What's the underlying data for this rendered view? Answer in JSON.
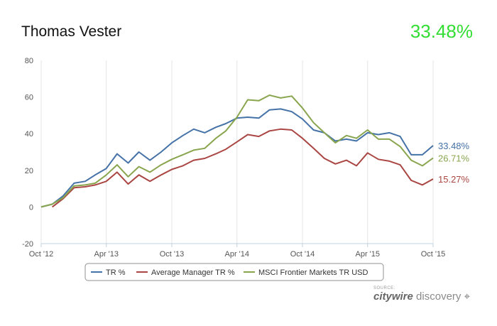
{
  "header": {
    "title": "Thomas Vester",
    "headline_value": "33.48%",
    "headline_color": "#33dd33"
  },
  "source": {
    "small": "SOURCE:",
    "brand_bold": "citywire",
    "brand_light": "discovery"
  },
  "chart_data": {
    "type": "line",
    "title": "",
    "xlabel": "",
    "ylabel": "",
    "ylim": [
      -20,
      80
    ],
    "yticks": [
      -20,
      0,
      20,
      40,
      60,
      80
    ],
    "xlim": [
      "2012-10-01",
      "2015-10-01"
    ],
    "xticks": [
      "2012-10-01",
      "2013-04-01",
      "2013-10-01",
      "2014-04-01",
      "2014-10-01",
      "2015-04-01",
      "2015-10-01"
    ],
    "xtick_labels": [
      "Oct '12",
      "Apr '13",
      "Oct '13",
      "Apr '14",
      "Oct '14",
      "Apr '15",
      "Oct '15"
    ],
    "grid": "vertical",
    "legend_position": "bottom",
    "series": [
      {
        "name": "TR %",
        "color": "#4572a7",
        "end_label": "33.48%",
        "points": [
          [
            "2012-10-01",
            0
          ],
          [
            "2012-11-01",
            1.5
          ],
          [
            "2012-12-01",
            6
          ],
          [
            "2013-01-01",
            13
          ],
          [
            "2013-02-01",
            14
          ],
          [
            "2013-03-01",
            17.5
          ],
          [
            "2013-04-01",
            21
          ],
          [
            "2013-05-01",
            29
          ],
          [
            "2013-06-01",
            24
          ],
          [
            "2013-07-01",
            30
          ],
          [
            "2013-08-01",
            25.5
          ],
          [
            "2013-09-01",
            30
          ],
          [
            "2013-10-01",
            35
          ],
          [
            "2013-11-01",
            39
          ],
          [
            "2013-12-01",
            42.5
          ],
          [
            "2014-01-01",
            40.5
          ],
          [
            "2014-02-01",
            43.5
          ],
          [
            "2014-03-01",
            45.5
          ],
          [
            "2014-04-01",
            48.5
          ],
          [
            "2014-05-01",
            49
          ],
          [
            "2014-06-01",
            48.5
          ],
          [
            "2014-07-01",
            53
          ],
          [
            "2014-08-01",
            53.5
          ],
          [
            "2014-09-01",
            52
          ],
          [
            "2014-10-01",
            48
          ],
          [
            "2014-11-01",
            42
          ],
          [
            "2014-12-01",
            40.5
          ],
          [
            "2015-01-01",
            36
          ],
          [
            "2015-02-01",
            37
          ],
          [
            "2015-03-01",
            36
          ],
          [
            "2015-04-01",
            40.5
          ],
          [
            "2015-05-01",
            39.5
          ],
          [
            "2015-06-01",
            40.5
          ],
          [
            "2015-07-01",
            38.5
          ],
          [
            "2015-08-01",
            28.5
          ],
          [
            "2015-09-01",
            28.5
          ],
          [
            "2015-10-01",
            33.48
          ]
        ]
      },
      {
        "name": "Average Manager TR %",
        "color": "#aa4643",
        "end_label": "15.27%",
        "points": [
          [
            "2012-11-01",
            0
          ],
          [
            "2012-12-01",
            4.5
          ],
          [
            "2013-01-01",
            10.5
          ],
          [
            "2013-02-01",
            11
          ],
          [
            "2013-03-01",
            12
          ],
          [
            "2013-04-01",
            14
          ],
          [
            "2013-05-01",
            19
          ],
          [
            "2013-06-01",
            12.5
          ],
          [
            "2013-07-01",
            17.5
          ],
          [
            "2013-08-01",
            14
          ],
          [
            "2013-09-01",
            17.5
          ],
          [
            "2013-10-01",
            20.5
          ],
          [
            "2013-11-01",
            22.5
          ],
          [
            "2013-12-01",
            25.5
          ],
          [
            "2014-01-01",
            26.5
          ],
          [
            "2014-02-01",
            29
          ],
          [
            "2014-03-01",
            31.5
          ],
          [
            "2014-04-01",
            35.5
          ],
          [
            "2014-05-01",
            39.5
          ],
          [
            "2014-06-01",
            38.5
          ],
          [
            "2014-07-01",
            41.5
          ],
          [
            "2014-08-01",
            42.5
          ],
          [
            "2014-09-01",
            42
          ],
          [
            "2014-10-01",
            37.5
          ],
          [
            "2014-11-01",
            32
          ],
          [
            "2014-12-01",
            26.5
          ],
          [
            "2015-01-01",
            23.5
          ],
          [
            "2015-02-01",
            25.5
          ],
          [
            "2015-03-01",
            22.5
          ],
          [
            "2015-04-01",
            29.5
          ],
          [
            "2015-05-01",
            26
          ],
          [
            "2015-06-01",
            25
          ],
          [
            "2015-07-01",
            23
          ],
          [
            "2015-08-01",
            14.5
          ],
          [
            "2015-09-01",
            12
          ],
          [
            "2015-10-01",
            15.27
          ]
        ]
      },
      {
        "name": "MSCI Frontier Markets TR USD",
        "color": "#89a54e",
        "end_label": "26.71%",
        "points": [
          [
            "2012-10-01",
            0
          ],
          [
            "2012-11-01",
            1.5
          ],
          [
            "2012-12-01",
            5
          ],
          [
            "2013-01-01",
            11.5
          ],
          [
            "2013-02-01",
            12
          ],
          [
            "2013-03-01",
            13
          ],
          [
            "2013-04-01",
            17.5
          ],
          [
            "2013-05-01",
            23
          ],
          [
            "2013-06-01",
            16.5
          ],
          [
            "2013-07-01",
            22
          ],
          [
            "2013-08-01",
            19
          ],
          [
            "2013-09-01",
            23
          ],
          [
            "2013-10-01",
            26
          ],
          [
            "2013-11-01",
            28.5
          ],
          [
            "2013-12-01",
            31
          ],
          [
            "2014-01-01",
            32
          ],
          [
            "2014-02-01",
            37.5
          ],
          [
            "2014-03-01",
            41.5
          ],
          [
            "2014-04-01",
            49
          ],
          [
            "2014-05-01",
            58.5
          ],
          [
            "2014-06-01",
            58
          ],
          [
            "2014-07-01",
            61
          ],
          [
            "2014-08-01",
            59.5
          ],
          [
            "2014-09-01",
            60.5
          ],
          [
            "2014-10-01",
            54
          ],
          [
            "2014-11-01",
            46
          ],
          [
            "2014-12-01",
            40.5
          ],
          [
            "2015-01-01",
            35
          ],
          [
            "2015-02-01",
            39
          ],
          [
            "2015-03-01",
            37.5
          ],
          [
            "2015-04-01",
            42
          ],
          [
            "2015-05-01",
            37
          ],
          [
            "2015-06-01",
            37
          ],
          [
            "2015-07-01",
            33
          ],
          [
            "2015-08-01",
            25.5
          ],
          [
            "2015-09-01",
            22.5
          ],
          [
            "2015-10-01",
            26.71
          ]
        ]
      }
    ]
  }
}
